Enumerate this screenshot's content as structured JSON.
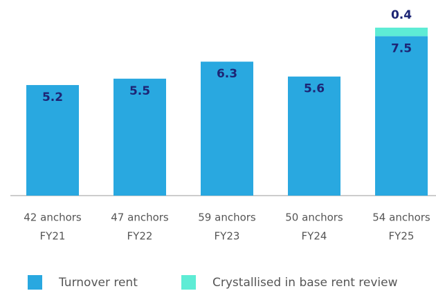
{
  "chart_data": {
    "type": "stacked_bar",
    "categories": [
      "FY21",
      "FY22",
      "FY23",
      "FY24",
      "FY25"
    ],
    "subcategories": [
      "42 anchors",
      "47 anchors",
      "59 anchors",
      "50 anchors",
      "54 anchors"
    ],
    "series": [
      {
        "name": "Turnover rent",
        "color": "#29a8e0",
        "values": [
          5.2,
          5.5,
          6.3,
          5.6,
          7.5
        ]
      },
      {
        "name": "Crystallised in base rent review",
        "color": "#5eecd5",
        "values": [
          null,
          null,
          null,
          null,
          0.4
        ]
      }
    ],
    "ylim": [
      0,
      9.2
    ],
    "legend": "bottom"
  }
}
